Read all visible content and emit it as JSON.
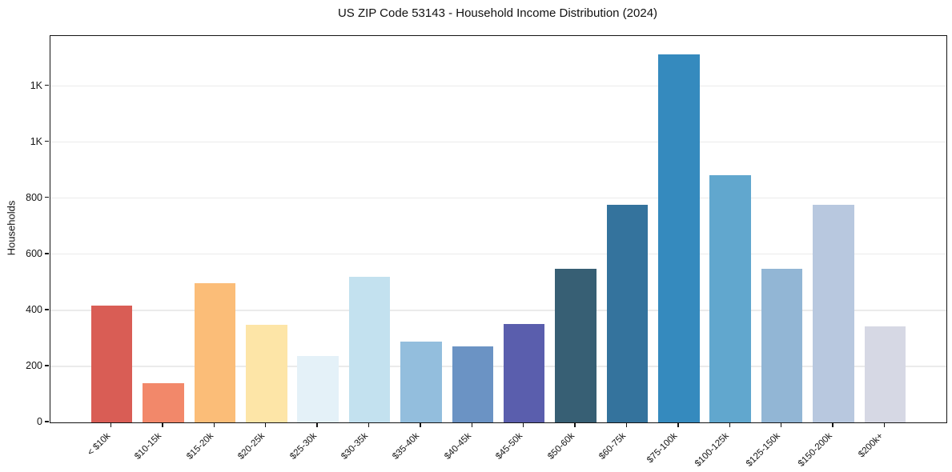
{
  "chart_data": {
    "type": "bar",
    "title": "US ZIP Code 53143 - Household Income Distribution (2024)",
    "xlabel": "",
    "ylabel": "Households",
    "categories": [
      "< $10k",
      "$10-15k",
      "$15-20k",
      "$20-25k",
      "$25-30k",
      "$30-35k",
      "$35-40k",
      "$40-45k",
      "$45-50k",
      "$50-60k",
      "$60-75k",
      "$75-100k",
      "$100-125k",
      "$125-150k",
      "$150-200k",
      "$200k+"
    ],
    "values": [
      418,
      141,
      498,
      349,
      238,
      521,
      289,
      271,
      352,
      548,
      776,
      1313,
      883,
      549,
      777,
      344
    ],
    "bar_colors": [
      "#d95d55",
      "#f2886a",
      "#fbbd78",
      "#fde5a7",
      "#e4f1f8",
      "#c3e1ef",
      "#93bedd",
      "#6b93c4",
      "#5a5ead",
      "#375f74",
      "#34739d",
      "#358abe",
      "#61a7ce",
      "#92b6d5",
      "#b8c8df",
      "#d6d8e4"
    ],
    "ylim": [
      0,
      1379
    ],
    "ytick_values": [
      0,
      200,
      400,
      600,
      800,
      1000,
      1200
    ],
    "ytick_labels": [
      "0",
      "200",
      "400",
      "600",
      "800",
      "1K",
      "1K"
    ],
    "grid": "horizontal-only",
    "legend": "none",
    "background_color": "#ffffff",
    "gridline_color": "#ebebeb",
    "spine_color": "#141414"
  }
}
